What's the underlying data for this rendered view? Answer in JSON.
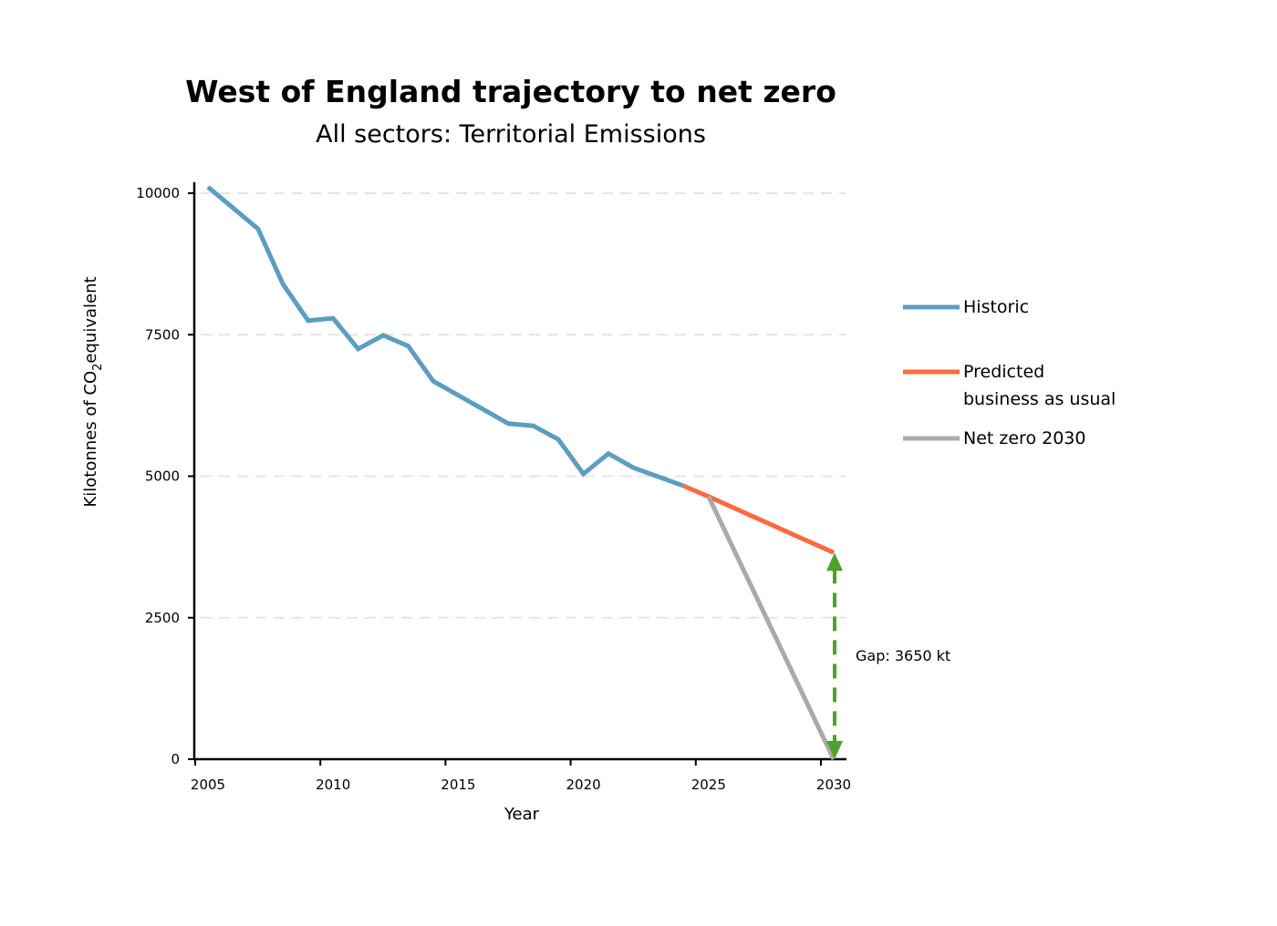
{
  "chart_data": {
    "type": "line",
    "title": "West of England trajectory to net zero",
    "subtitle": "All sectors: Territorial Emissions",
    "xlabel": "Year",
    "ylabel_main": "Kilotonnes of CO",
    "ylabel_sub": "2",
    "ylabel_end": "equivalent",
    "xlim": [
      2005,
      2030
    ],
    "ylim": [
      0,
      10000
    ],
    "xticks": [
      "2005",
      "2010",
      "2015",
      "2020",
      "2025",
      "2030"
    ],
    "yticks": [
      "0",
      "2500",
      "5000",
      "7500",
      "10000"
    ],
    "grid": "horizontal dashed",
    "legend_position": "right",
    "series": [
      {
        "name": "Historic",
        "color": "#5d9dc2",
        "x": [
          2005,
          2007,
          2008,
          2009,
          2010,
          2011,
          2012,
          2013,
          2014,
          2015,
          2016,
          2017,
          2018,
          2019,
          2020,
          2021,
          2022,
          2023,
          2024
        ],
        "y": [
          10110,
          9370,
          8390,
          7750,
          7790,
          7250,
          7490,
          7300,
          6680,
          6430,
          6180,
          5930,
          5890,
          5650,
          5040,
          5400,
          5150,
          4990,
          4830
        ]
      },
      {
        "name": "Predicted business as usual",
        "color": "#ff6a3d",
        "x": [
          2024,
          2025,
          2030
        ],
        "y": [
          4830,
          4640,
          3650
        ]
      },
      {
        "name": "Net zero 2030",
        "color": "#aaaaaa",
        "x": [
          2025,
          2030
        ],
        "y": [
          4640,
          0
        ]
      }
    ],
    "annotation": {
      "text": "Gap: 3650 kt",
      "x": 2030,
      "y_from": 0,
      "y_to": 3650,
      "color": "#4fa12e"
    }
  }
}
